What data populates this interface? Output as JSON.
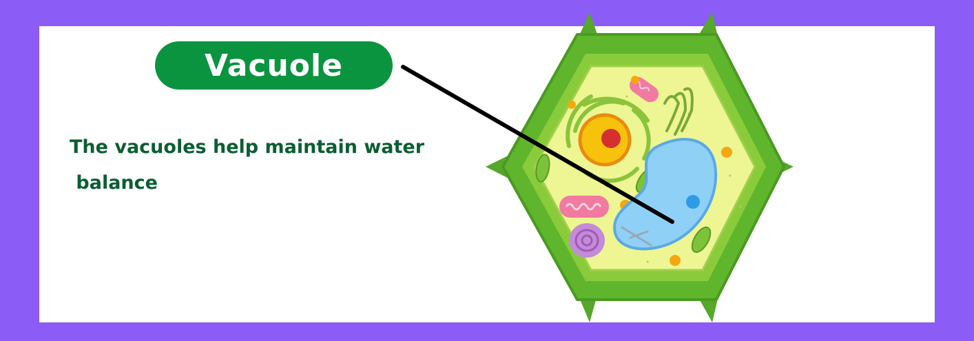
{
  "title": "Vacuole",
  "description": "The vacuoles help maintain water\n balance",
  "colors": {
    "frame": "#8b5cf6",
    "panel": "#ffffff",
    "title_bg": "#0a943f",
    "title_text": "#ffffff",
    "description_text": "#0b5e33",
    "cell_wall": "#5fb52b",
    "cytoplasm": "#eef593",
    "vacuole": "#8fd0f7",
    "nucleus": "#f6c20b",
    "nucleolus": "#d62f2f"
  }
}
